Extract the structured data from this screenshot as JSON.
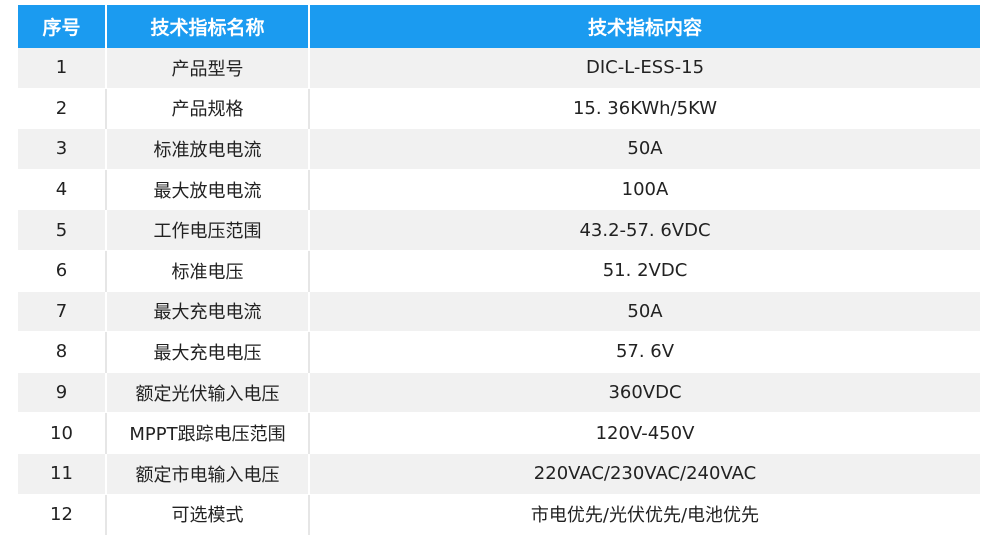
{
  "table": {
    "header": [
      "序号",
      "技术指标名称",
      "技术指标内容"
    ],
    "rows": [
      [
        "1",
        "产品型号",
        "DIC-L-ESS-15"
      ],
      [
        "2",
        "产品规格",
        "15. 36KWh/5KW"
      ],
      [
        "3",
        "标准放电电流",
        "50A"
      ],
      [
        "4",
        "最大放电电流",
        "100A"
      ],
      [
        "5",
        "工作电压范围",
        "43.2-57. 6VDC"
      ],
      [
        "6",
        "标准电压",
        "51. 2VDC"
      ],
      [
        "7",
        "最大充电电流",
        "50A"
      ],
      [
        "8",
        "最大充电电压",
        "57. 6V"
      ],
      [
        "9",
        "额定光伏输入电压",
        "360VDC"
      ],
      [
        "10",
        "MPPT跟踪电压范围",
        "120V-450V"
      ],
      [
        "11",
        "额定市电输入电压",
        "220VAC/230VAC/240VAC"
      ],
      [
        "12",
        "可选模式",
        "市电优先/光伏优先/电池优先"
      ]
    ]
  }
}
